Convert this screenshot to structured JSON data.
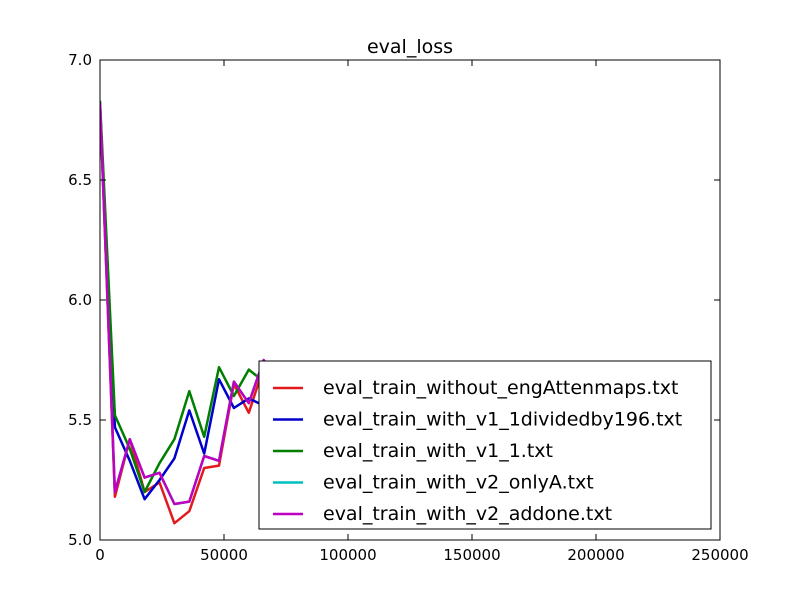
{
  "chart_data": {
    "type": "line",
    "title": "eval_loss",
    "xlabel": "",
    "ylabel": "",
    "xlim": [
      0,
      250000
    ],
    "ylim": [
      5.0,
      7.0
    ],
    "xticks": [
      0,
      50000,
      100000,
      150000,
      200000,
      250000
    ],
    "yticks": [
      5.0,
      5.5,
      6.0,
      6.5,
      7.0
    ],
    "xtick_labels": [
      "0",
      "50000",
      "100000",
      "150000",
      "200000",
      "250000"
    ],
    "ytick_labels": [
      "5.0",
      "5.5",
      "6.0",
      "6.5",
      "7.0"
    ],
    "grid": false,
    "legend_position": "lower-right",
    "series": [
      {
        "name": "eval_train_without_engAttenmaps.txt",
        "color": "#e31a1c",
        "x": [
          0,
          6000,
          12000,
          18000,
          24000,
          30000,
          36000,
          42000,
          48000,
          54000,
          60000,
          66000,
          72000,
          78000,
          84000,
          90000
        ],
        "y": [
          6.82,
          5.18,
          5.42,
          5.2,
          5.24,
          5.07,
          5.12,
          5.3,
          5.31,
          5.65,
          5.53,
          5.72,
          5.63,
          5.66,
          5.61,
          5.64
        ]
      },
      {
        "name": "eval_train_with_v1_1dividedby196.txt",
        "color": "#0000cc",
        "x": [
          0,
          6000,
          12000,
          18000,
          24000,
          30000,
          36000,
          42000,
          48000,
          54000,
          60000,
          66000,
          72000,
          78000,
          84000,
          90000
        ],
        "y": [
          6.8,
          5.47,
          5.33,
          5.17,
          5.25,
          5.34,
          5.54,
          5.36,
          5.67,
          5.55,
          5.59,
          5.56,
          5.58,
          5.57,
          5.6,
          5.58
        ]
      },
      {
        "name": "eval_train_with_v1_1.txt",
        "color": "#007f00",
        "x": [
          0,
          6000,
          12000,
          18000,
          24000,
          30000,
          36000,
          42000,
          48000,
          54000,
          60000,
          66000,
          72000,
          78000,
          84000,
          90000,
          96000,
          102000
        ],
        "y": [
          6.83,
          5.52,
          5.38,
          5.2,
          5.32,
          5.42,
          5.62,
          5.43,
          5.72,
          5.6,
          5.71,
          5.66,
          5.7,
          5.64,
          5.66,
          5.6,
          5.73,
          5.63
        ]
      },
      {
        "name": "eval_train_with_v2_onlyA.txt",
        "color": "#00bfbf",
        "x": [
          0,
          6000,
          12000,
          18000,
          24000,
          30000,
          36000,
          42000,
          48000,
          54000,
          60000,
          66000,
          72000,
          78000
        ],
        "y": [
          6.82,
          5.2,
          5.42,
          5.26,
          5.28,
          5.15,
          5.16,
          5.35,
          5.33,
          5.66,
          5.57,
          5.75,
          5.64,
          5.62
        ]
      },
      {
        "name": "eval_train_with_v2_addone.txt",
        "color": "#bf00bf",
        "x": [
          0,
          6000,
          12000,
          18000,
          24000,
          30000,
          36000,
          42000,
          48000,
          54000,
          60000,
          66000,
          72000,
          78000
        ],
        "y": [
          6.82,
          5.2,
          5.42,
          5.26,
          5.28,
          5.15,
          5.16,
          5.35,
          5.33,
          5.66,
          5.57,
          5.75,
          5.64,
          5.62
        ]
      }
    ]
  }
}
